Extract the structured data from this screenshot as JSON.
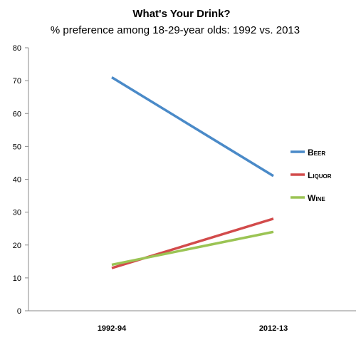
{
  "chart_data": {
    "type": "line",
    "title": "What's Your Drink?",
    "subtitle": "% preference among 18-29-year olds: 1992 vs. 2013",
    "categories": [
      "1992-94",
      "2012-13"
    ],
    "series": [
      {
        "name": "Beer",
        "values": [
          71,
          41
        ],
        "color": "#4a8ac8"
      },
      {
        "name": "Liquor",
        "values": [
          13,
          28
        ],
        "color": "#d24b4b"
      },
      {
        "name": "Wine",
        "values": [
          14,
          24
        ],
        "color": "#9bc454"
      }
    ],
    "yticks": [
      "0",
      "10",
      "20",
      "30",
      "40",
      "50",
      "60",
      "70",
      "80"
    ],
    "ylim": [
      0,
      80
    ],
    "xlabel": "",
    "ylabel": "",
    "grid": false,
    "legend_position": "right"
  }
}
